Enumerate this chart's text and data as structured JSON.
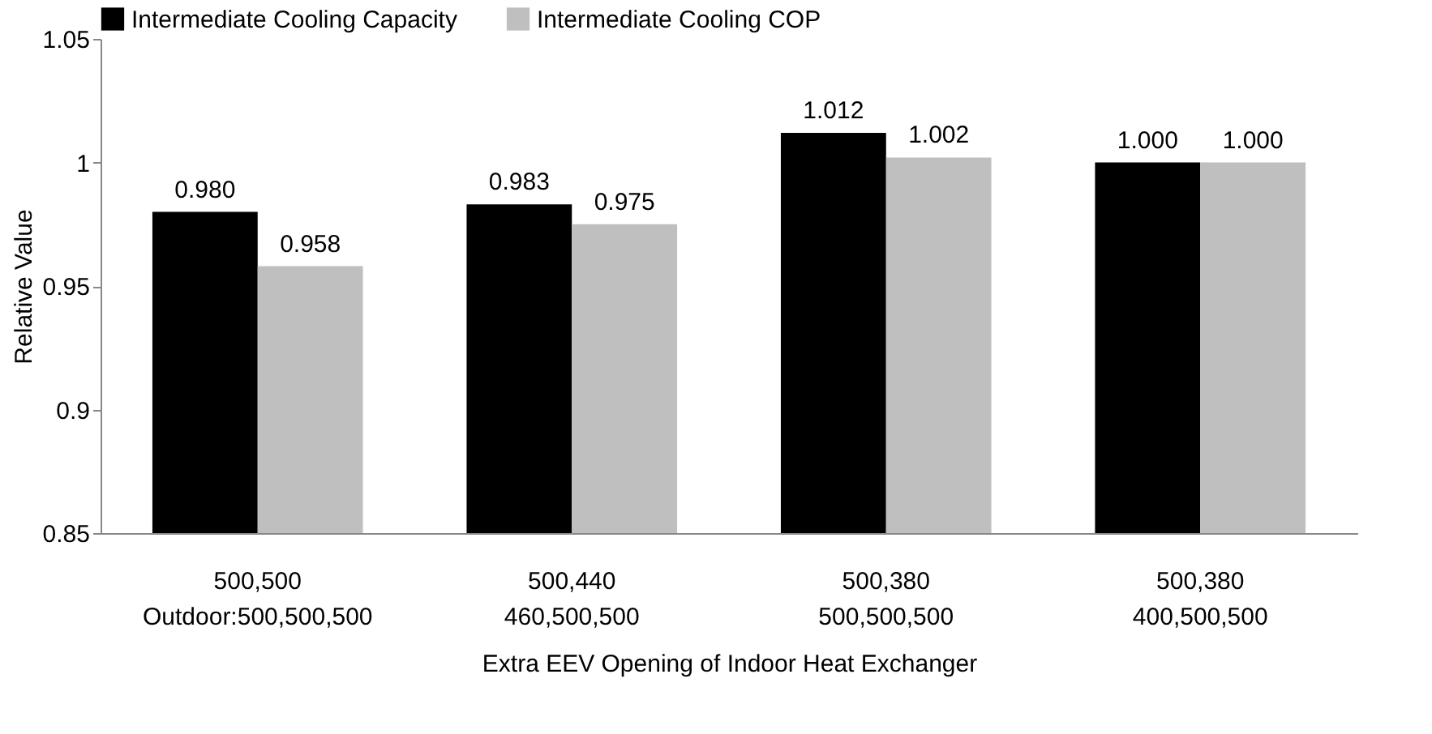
{
  "chart_data": {
    "type": "bar",
    "xlabel": "Extra EEV Opening of Indoor Heat Exchanger",
    "ylabel": "Relative Value",
    "categories": [
      "500,500\nOutdoor:500,500,500",
      "500,440\n460,500,500",
      "500,380\n500,500,500",
      "500,380\n400,500,500"
    ],
    "series": [
      {
        "name": "Intermediate Cooling Capacity",
        "color": "#000000",
        "values": [
          0.98,
          0.983,
          1.012,
          1.0
        ],
        "value_labels": [
          "0.980",
          "0.983",
          "1.012",
          "1.000"
        ]
      },
      {
        "name": "Intermediate Cooling COP",
        "color": "#bfbfbf",
        "values": [
          0.958,
          0.975,
          1.002,
          1.0
        ],
        "value_labels": [
          "0.958",
          "0.975",
          "1.002",
          "1.000"
        ]
      }
    ],
    "ylim": [
      0.85,
      1.05
    ],
    "yticks": [
      0.85,
      0.9,
      0.95,
      1,
      1.05
    ],
    "grid": false,
    "legend": "top"
  }
}
